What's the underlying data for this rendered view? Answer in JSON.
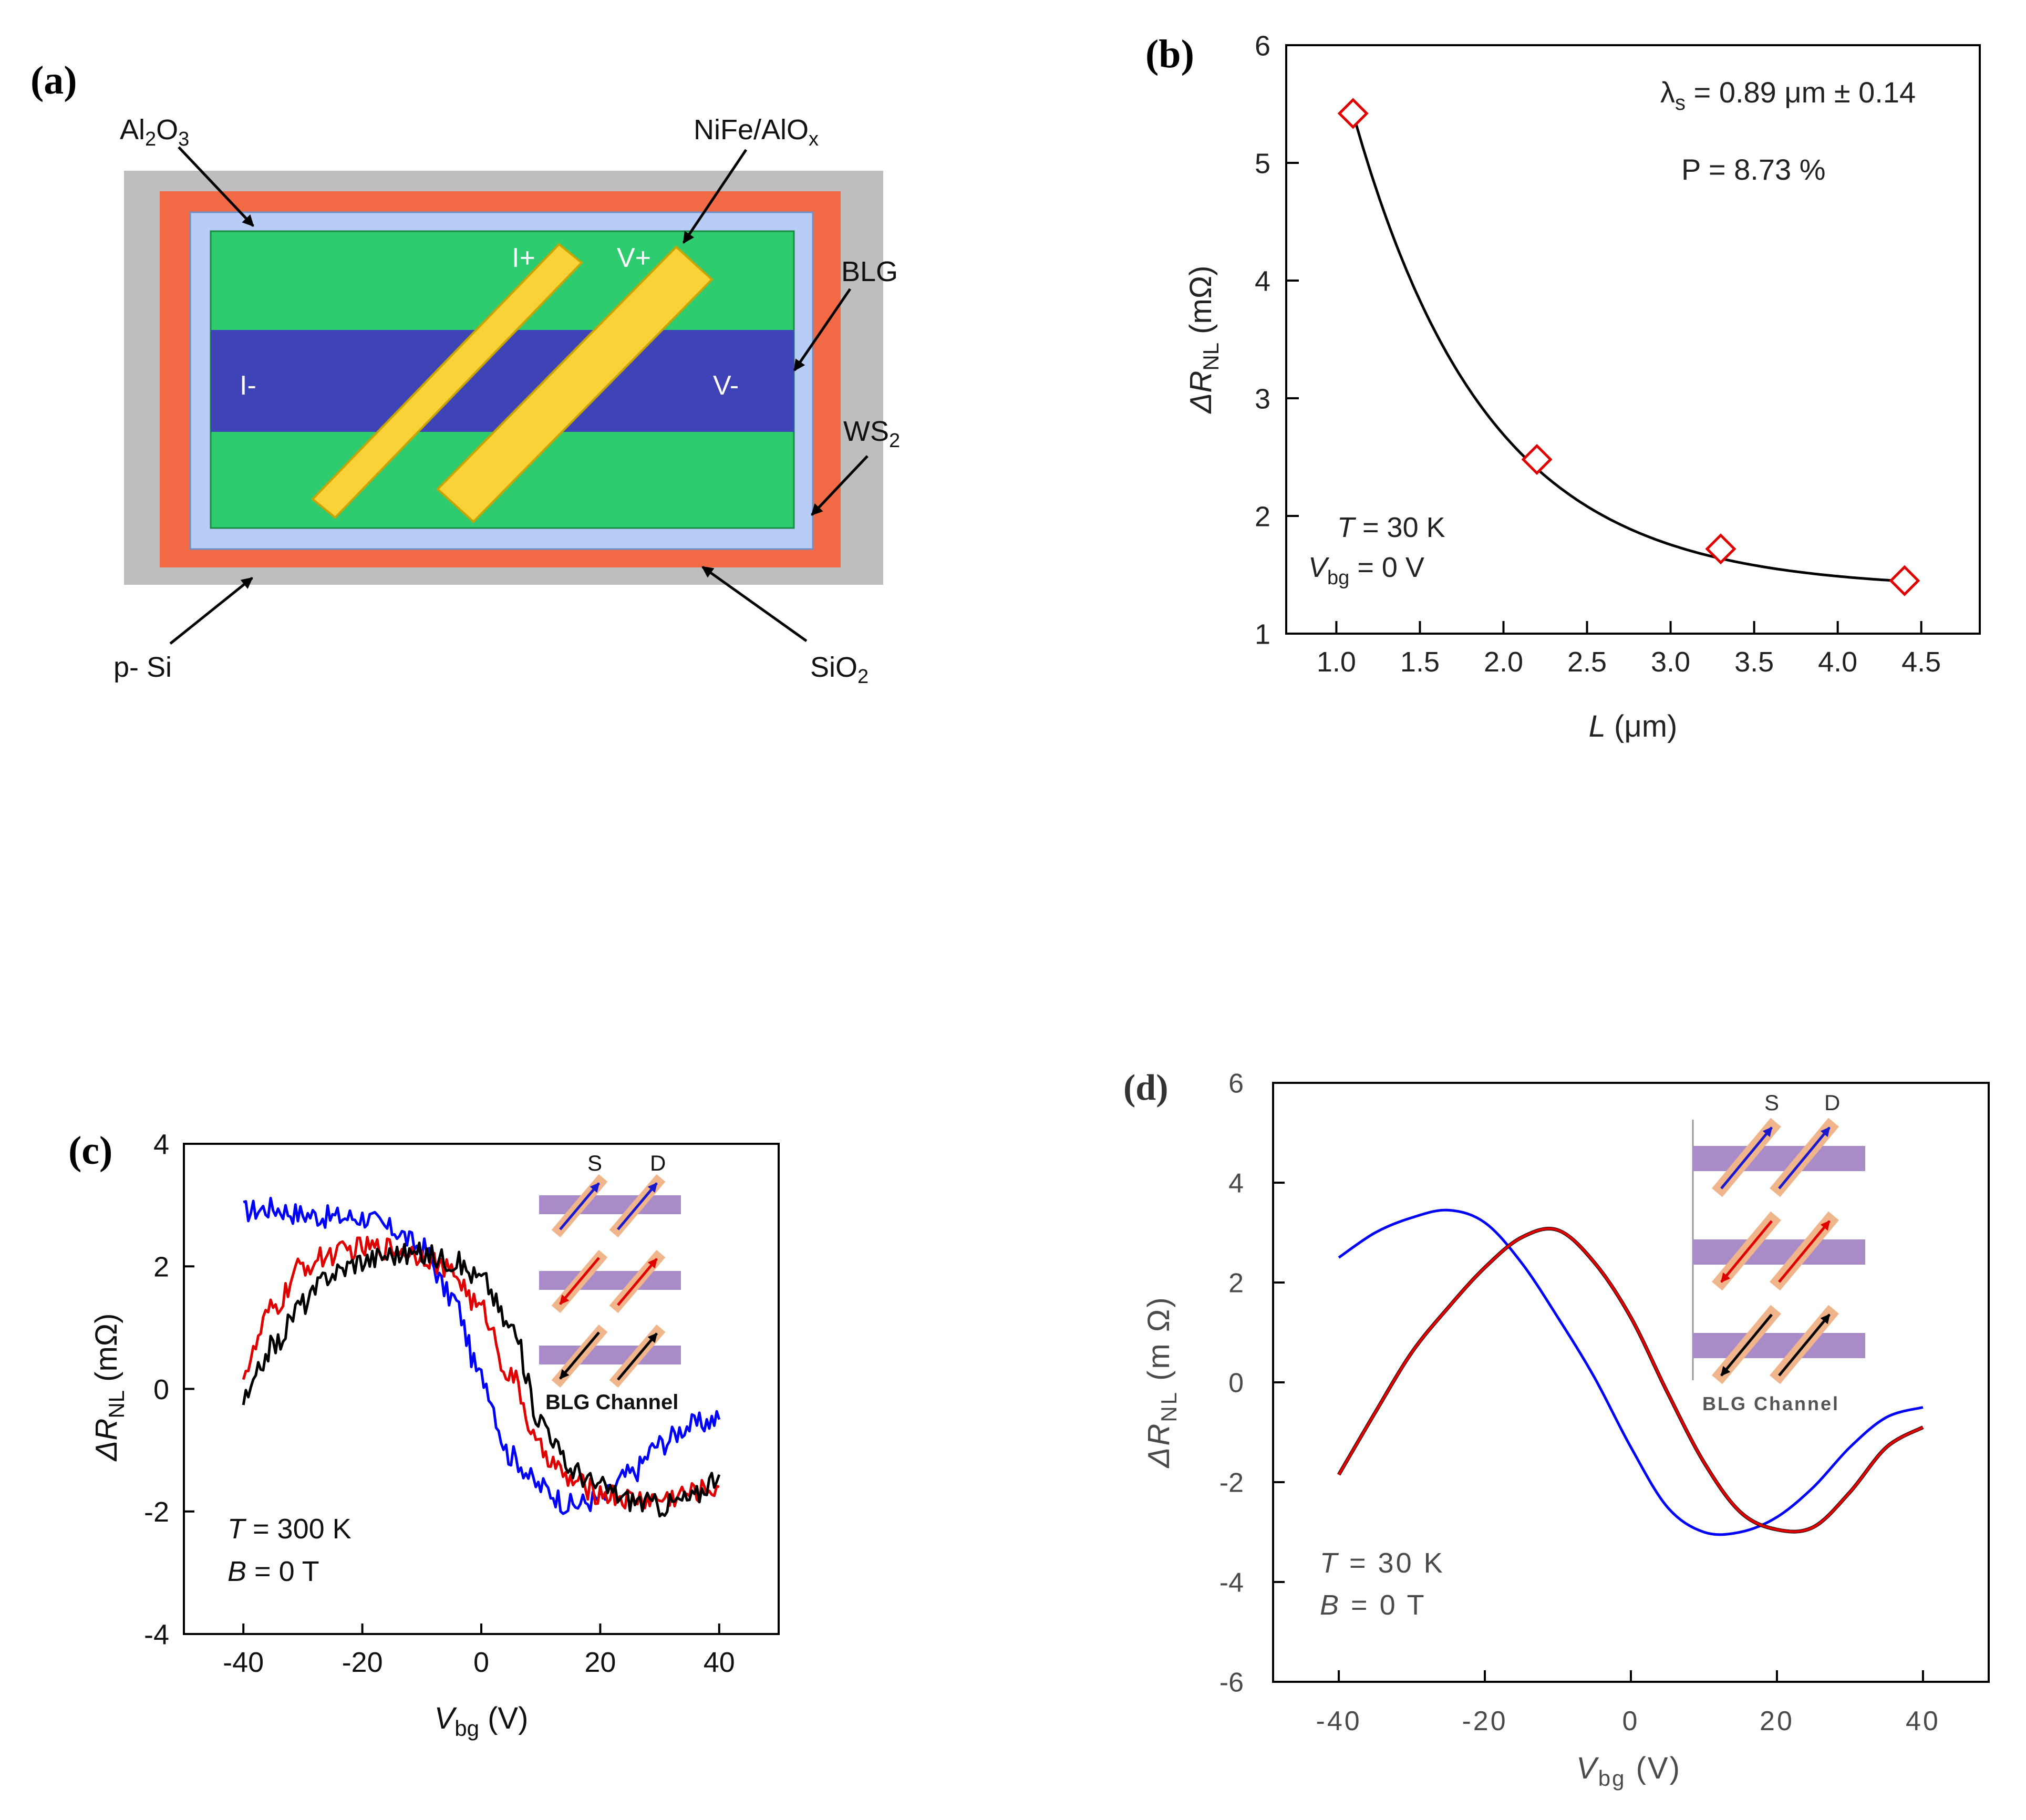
{
  "panels": {
    "a": {
      "label": "(a)",
      "layer_labels": {
        "al2o3": "Al",
        "al2o3_sub2": "2",
        "al2o3_o": "O",
        "al2o3_sub3": "3",
        "nife": "NiFe/AlO",
        "nife_sub": "x",
        "blg": "BLG",
        "ws2": "WS",
        "ws2_sub": "2",
        "psi": "p- Si",
        "sio2": "SiO",
        "sio2_sub": "2"
      },
      "contact_labels": {
        "i_plus": "I+",
        "v_plus": "V+",
        "i_minus": "I-",
        "v_minus": "V-"
      },
      "colors": {
        "psi": "#BEBEBE",
        "sio2": "#F26A45",
        "ws2": "#B7CDF6",
        "hbn": "#2ECC6E",
        "blg": "#3E43B5",
        "contact": "#F8D237",
        "contact_edge": "#C9A400"
      }
    },
    "b": {
      "label": "(b)",
      "annotations": {
        "lambda_sym": "λ",
        "lambda_sub": "s",
        "lambda_val": " = 0.89 μm ± 0.14",
        "p": "P = 8.73 %",
        "t_sym": "T",
        "t_val": " = 30 K",
        "v_sym": "V",
        "v_sub": "bg",
        "v_val": " = 0 V"
      },
      "axis_text": {
        "ylabel_main": "ΔR",
        "ylabel_sub": "NL",
        "ylabel_unit": " (mΩ)",
        "xlabel_main": "L",
        "xlabel_unit": " (μm)"
      }
    },
    "c": {
      "label": "(c)",
      "annotations": {
        "t_sym": "T",
        "t_val": " = 300 K",
        "b_sym": "B",
        "b_val": " = 0 T"
      },
      "axis_text": {
        "ylabel_main": "ΔR",
        "ylabel_sub": "NL",
        "ylabel_unit": " (mΩ)",
        "xlabel_main": "V",
        "xlabel_sub": "bg",
        "xlabel_unit": " (V)"
      },
      "inset": {
        "s": "S",
        "d": "D",
        "caption": "BLG Channel"
      }
    },
    "d": {
      "label": "(d)",
      "annotations": {
        "t_sym": "T",
        "t_val": " = 30 K",
        "b_sym": "B",
        "b_val": " = 0 T"
      },
      "axis_text": {
        "ylabel_main": "ΔR",
        "ylabel_sub": "NL",
        "ylabel_unit": " (m Ω)",
        "xlabel_main": "V",
        "xlabel_sub": "bg",
        "xlabel_unit": " (V)"
      },
      "inset": {
        "s": "S",
        "d": "D",
        "caption": "BLG Channel"
      }
    }
  },
  "chart_data": [
    {
      "panel": "b",
      "type": "scatter",
      "title": "",
      "xlabel": "L (μm)",
      "ylabel": "ΔR NL (mΩ)",
      "xlim": [
        0.7,
        4.85
      ],
      "ylim": [
        1,
        6
      ],
      "xticks": [
        1.0,
        1.5,
        2.0,
        2.5,
        3.0,
        3.5,
        4.0,
        4.5
      ],
      "yticks": [
        1,
        2,
        3,
        4,
        5,
        6
      ],
      "series": [
        {
          "name": "data",
          "color": "#E00000",
          "marker": "diamond-open",
          "x": [
            1.1,
            2.2,
            3.3,
            4.4
          ],
          "y": [
            5.42,
            2.48,
            1.72,
            1.45
          ]
        },
        {
          "name": "fit",
          "color": "#000000",
          "marker": "line",
          "fit": {
            "form": "y0 + a*exp(-(x-1.1)/tau)",
            "y0": 1.38,
            "a": 4.04,
            "tau": 0.8
          },
          "x_range": [
            1.1,
            4.4
          ]
        }
      ]
    },
    {
      "panel": "c",
      "type": "line",
      "xlabel": "V bg (V)",
      "ylabel": "ΔR NL (mΩ)",
      "xlim": [
        -50,
        50
      ],
      "ylim": [
        -4,
        4
      ],
      "xticks": [
        -40,
        -20,
        0,
        20,
        40
      ],
      "yticks": [
        -4,
        -2,
        0,
        2,
        4
      ],
      "x": [
        -40,
        -35,
        -30,
        -25,
        -20,
        -15,
        -10,
        -5,
        0,
        5,
        10,
        15,
        20,
        25,
        30,
        35,
        40
      ],
      "series": [
        {
          "name": "blue",
          "color": "#0000FF",
          "values": [
            2.9,
            2.95,
            2.85,
            2.8,
            2.8,
            2.6,
            2.3,
            1.5,
            0.2,
            -1.1,
            -1.6,
            -1.9,
            -1.8,
            -1.4,
            -0.9,
            -0.6,
            -0.5
          ]
        },
        {
          "name": "red",
          "color": "#E00000",
          "values": [
            0.3,
            1.3,
            2.0,
            2.2,
            2.3,
            2.3,
            2.2,
            1.9,
            1.3,
            0.2,
            -1.0,
            -1.5,
            -1.7,
            -1.8,
            -1.8,
            -1.7,
            -1.6
          ]
        },
        {
          "name": "black",
          "color": "#000000",
          "values": [
            -0.2,
            0.7,
            1.4,
            1.9,
            2.1,
            2.2,
            2.2,
            2.1,
            1.8,
            1.0,
            -0.5,
            -1.3,
            -1.6,
            -1.8,
            -1.9,
            -1.8,
            -1.4
          ]
        }
      ]
    },
    {
      "panel": "d",
      "type": "line",
      "xlabel": "V bg (V)",
      "ylabel": "ΔR NL (m Ω)",
      "xlim": [
        -49,
        49
      ],
      "ylim": [
        -6,
        6
      ],
      "xticks": [
        -40,
        -20,
        0,
        20,
        40
      ],
      "yticks": [
        -6,
        -4,
        -2,
        0,
        2,
        4,
        6
      ],
      "x": [
        -40,
        -35,
        -30,
        -25,
        -20,
        -15,
        -10,
        -5,
        0,
        5,
        10,
        15,
        20,
        25,
        30,
        35,
        40
      ],
      "series": [
        {
          "name": "blue",
          "color": "#0000FF",
          "values": [
            2.5,
            3.0,
            3.3,
            3.45,
            3.2,
            2.4,
            1.3,
            0.1,
            -1.3,
            -2.5,
            -3.0,
            -3.0,
            -2.7,
            -2.1,
            -1.3,
            -0.7,
            -0.5
          ]
        },
        {
          "name": "black",
          "color": "#000000",
          "values": [
            -1.85,
            -0.6,
            0.6,
            1.5,
            2.3,
            2.9,
            3.05,
            2.4,
            1.3,
            -0.2,
            -1.6,
            -2.6,
            -2.95,
            -2.9,
            -2.2,
            -1.3,
            -0.9
          ]
        },
        {
          "name": "red",
          "color": "#E00000",
          "values": [
            -1.85,
            -0.6,
            0.6,
            1.5,
            2.3,
            2.9,
            3.05,
            2.4,
            1.3,
            -0.2,
            -1.6,
            -2.6,
            -2.95,
            -2.9,
            -2.2,
            -1.3,
            -0.9
          ]
        }
      ]
    }
  ]
}
